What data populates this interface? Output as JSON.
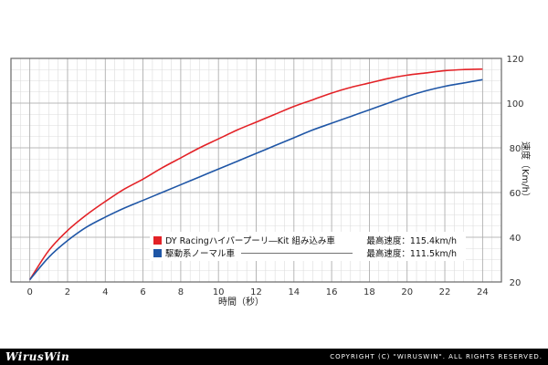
{
  "chart_data": {
    "type": "line",
    "xlabel": "時間（秒）",
    "ylabel": "速度（Km/h）",
    "xlim": [
      -1,
      25
    ],
    "ylim": [
      20,
      120
    ],
    "x_ticks": [
      "0",
      "2",
      "4",
      "6",
      "8",
      "10",
      "12",
      "14",
      "16",
      "18",
      "20",
      "22",
      "24"
    ],
    "y_ticks": [
      "20",
      "40",
      "60",
      "80",
      "100",
      "120"
    ],
    "grid": true,
    "legend_position": "center",
    "series": [
      {
        "name": "DY Racingハイパープーリ―Kit 組み込み車",
        "color": "#e32227",
        "max_label": "最高速度：115.4km/h",
        "x": [
          0,
          1,
          2,
          3,
          4,
          5,
          6,
          7,
          8,
          9,
          10,
          11,
          12,
          13,
          14,
          15,
          16,
          17,
          18,
          19,
          20,
          21,
          22,
          23,
          24
        ],
        "y": [
          21,
          34,
          43,
          50,
          56,
          61.5,
          66,
          71,
          75.5,
          80,
          84,
          88,
          91.5,
          95,
          98.5,
          101.5,
          104.5,
          107,
          109,
          111,
          112.5,
          113.5,
          114.5,
          115,
          115.2
        ]
      },
      {
        "name": "駆動系ノーマル車",
        "color": "#1f56a6",
        "max_label": "最高速度：111.5km/h",
        "x": [
          0,
          1,
          2,
          3,
          4,
          5,
          6,
          7,
          8,
          9,
          10,
          11,
          12,
          13,
          14,
          15,
          16,
          17,
          18,
          19,
          20,
          21,
          22,
          23,
          24
        ],
        "y": [
          21,
          31,
          38.5,
          44.5,
          49,
          53,
          56.5,
          60,
          63.5,
          67,
          70.5,
          74,
          77.5,
          81,
          84.5,
          88,
          91,
          94,
          97,
          100,
          103,
          105.5,
          107.5,
          109,
          110.5
        ]
      }
    ]
  },
  "footer": {
    "logo": "WirusWin",
    "copyright": "COPYRIGHT (C) \"WIRUSWIN\". ALL RIGHTS RESERVED."
  }
}
